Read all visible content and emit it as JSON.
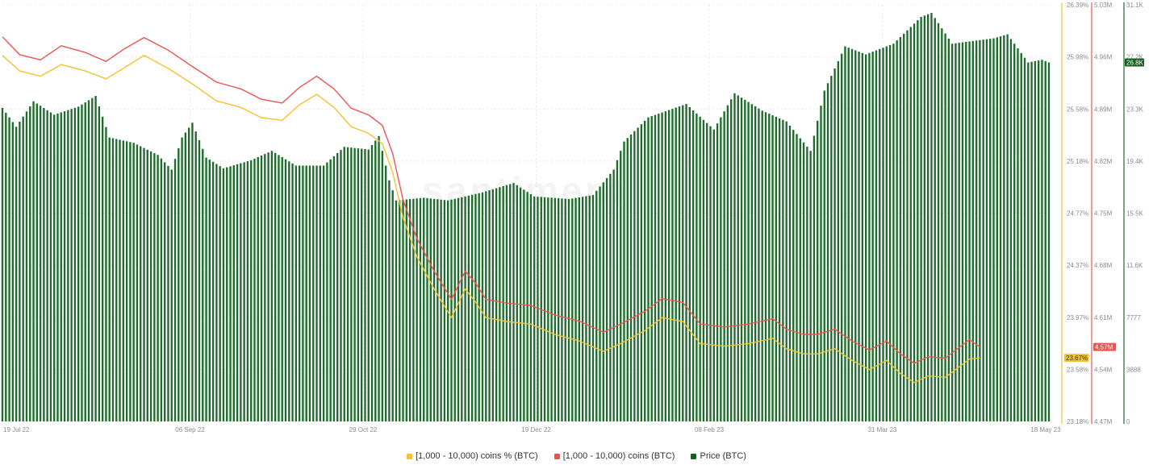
{
  "colors": {
    "pct": "#f2c230",
    "coins": "#ef5350",
    "price": "#1f6b2d",
    "price_badge": "#1b5e20",
    "grid": "#e8e8e8",
    "tick": "#8a8a8a"
  },
  "watermark": "santiment",
  "chart_data": {
    "type": "bar",
    "grid": true,
    "legend_position": "bottom-center",
    "x_ticks": [
      "19 Jul 22",
      "06 Sep 22",
      "29 Oct 22",
      "19 Dec 22",
      "08 Feb 23",
      "31 Mar 23",
      "18 May 23"
    ],
    "x_range": [
      "2022-07-19",
      "2023-05-18"
    ],
    "axes": {
      "pct": {
        "ticks": [
          "26.39%",
          "25.98%",
          "25.58%",
          "25.18%",
          "24.77%",
          "24.37%",
          "23.97%",
          "23.58%",
          "23.18%"
        ],
        "ylim": [
          23.18,
          26.39
        ],
        "last_label": "23.67%"
      },
      "coins": {
        "ticks": [
          "5.03M",
          "4.96M",
          "4.89M",
          "4.82M",
          "4.75M",
          "4.68M",
          "4.61M",
          "4.54M",
          "4.47M"
        ],
        "ylim": [
          4.47,
          5.03
        ],
        "last_label": "4.57M"
      },
      "price": {
        "ticks": [
          "31.1K",
          "27.2K",
          "23.3K",
          "19.4K",
          "15.5K",
          "11.6K",
          "7777",
          "3888",
          "0"
        ],
        "ylim": [
          0,
          31100
        ],
        "last_label": "26.8K"
      }
    },
    "series": [
      {
        "name": "[1,000 - 10,000) coins % (BTC)",
        "axis": "pct",
        "points": [
          [
            "2022-07-19",
            26.0
          ],
          [
            "2022-07-24",
            25.88
          ],
          [
            "2022-07-30",
            25.84
          ],
          [
            "2022-08-05",
            25.93
          ],
          [
            "2022-08-12",
            25.88
          ],
          [
            "2022-08-18",
            25.82
          ],
          [
            "2022-08-23",
            25.9
          ],
          [
            "2022-08-29",
            26.0
          ],
          [
            "2022-09-05",
            25.9
          ],
          [
            "2022-09-12",
            25.78
          ],
          [
            "2022-09-19",
            25.65
          ],
          [
            "2022-09-26",
            25.6
          ],
          [
            "2022-10-02",
            25.52
          ],
          [
            "2022-10-08",
            25.5
          ],
          [
            "2022-10-13",
            25.62
          ],
          [
            "2022-10-18",
            25.7
          ],
          [
            "2022-10-23",
            25.6
          ],
          [
            "2022-10-28",
            25.45
          ],
          [
            "2022-11-02",
            25.4
          ],
          [
            "2022-11-06",
            25.32
          ],
          [
            "2022-11-09",
            25.1
          ],
          [
            "2022-11-12",
            24.75
          ],
          [
            "2022-11-16",
            24.45
          ],
          [
            "2022-11-21",
            24.2
          ],
          [
            "2022-11-26",
            23.98
          ],
          [
            "2022-11-30",
            24.2
          ],
          [
            "2022-12-03",
            24.1
          ],
          [
            "2022-12-06",
            23.98
          ],
          [
            "2022-12-12",
            23.95
          ],
          [
            "2022-12-19",
            23.93
          ],
          [
            "2022-12-26",
            23.85
          ],
          [
            "2023-01-02",
            23.8
          ],
          [
            "2023-01-09",
            23.72
          ],
          [
            "2023-01-14",
            23.78
          ],
          [
            "2023-01-21",
            23.88
          ],
          [
            "2023-01-26",
            23.98
          ],
          [
            "2023-02-01",
            23.95
          ],
          [
            "2023-02-06",
            23.78
          ],
          [
            "2023-02-13",
            23.76
          ],
          [
            "2023-02-20",
            23.78
          ],
          [
            "2023-02-27",
            23.82
          ],
          [
            "2023-03-03",
            23.74
          ],
          [
            "2023-03-08",
            23.7
          ],
          [
            "2023-03-12",
            23.7
          ],
          [
            "2023-03-17",
            23.74
          ],
          [
            "2023-03-22",
            23.65
          ],
          [
            "2023-03-27",
            23.58
          ],
          [
            "2023-04-01",
            23.65
          ],
          [
            "2023-04-05",
            23.55
          ],
          [
            "2023-04-09",
            23.48
          ],
          [
            "2023-04-13",
            23.53
          ],
          [
            "2023-04-18",
            23.52
          ],
          [
            "2023-04-25",
            23.66
          ],
          [
            "2023-04-28",
            23.67
          ]
        ]
      },
      {
        "name": "[1,000 - 10,000) coins (BTC)",
        "axis": "coins",
        "points": [
          [
            "2022-07-19",
            4.987
          ],
          [
            "2022-07-24",
            4.963
          ],
          [
            "2022-07-30",
            4.956
          ],
          [
            "2022-08-05",
            4.975
          ],
          [
            "2022-08-12",
            4.966
          ],
          [
            "2022-08-18",
            4.954
          ],
          [
            "2022-08-23",
            4.97
          ],
          [
            "2022-08-29",
            4.986
          ],
          [
            "2022-09-05",
            4.969
          ],
          [
            "2022-09-12",
            4.947
          ],
          [
            "2022-09-19",
            4.926
          ],
          [
            "2022-09-26",
            4.917
          ],
          [
            "2022-10-02",
            4.903
          ],
          [
            "2022-10-08",
            4.898
          ],
          [
            "2022-10-13",
            4.919
          ],
          [
            "2022-10-18",
            4.934
          ],
          [
            "2022-10-23",
            4.917
          ],
          [
            "2022-10-28",
            4.891
          ],
          [
            "2022-11-02",
            4.882
          ],
          [
            "2022-11-06",
            4.868
          ],
          [
            "2022-11-09",
            4.83
          ],
          [
            "2022-11-12",
            4.768
          ],
          [
            "2022-11-16",
            4.716
          ],
          [
            "2022-11-21",
            4.672
          ],
          [
            "2022-11-26",
            4.634
          ],
          [
            "2022-11-30",
            4.672
          ],
          [
            "2022-12-03",
            4.656
          ],
          [
            "2022-12-06",
            4.634
          ],
          [
            "2022-12-12",
            4.629
          ],
          [
            "2022-12-19",
            4.626
          ],
          [
            "2022-12-26",
            4.613
          ],
          [
            "2023-01-02",
            4.605
          ],
          [
            "2023-01-09",
            4.59
          ],
          [
            "2023-01-14",
            4.601
          ],
          [
            "2023-01-21",
            4.618
          ],
          [
            "2023-01-26",
            4.635
          ],
          [
            "2023-02-01",
            4.63
          ],
          [
            "2023-02-06",
            4.601
          ],
          [
            "2023-02-13",
            4.597
          ],
          [
            "2023-02-20",
            4.601
          ],
          [
            "2023-02-27",
            4.608
          ],
          [
            "2023-03-03",
            4.594
          ],
          [
            "2023-03-08",
            4.587
          ],
          [
            "2023-03-12",
            4.587
          ],
          [
            "2023-03-17",
            4.594
          ],
          [
            "2023-03-22",
            4.578
          ],
          [
            "2023-03-27",
            4.566
          ],
          [
            "2023-04-01",
            4.578
          ],
          [
            "2023-04-05",
            4.561
          ],
          [
            "2023-04-09",
            4.548
          ],
          [
            "2023-04-13",
            4.557
          ],
          [
            "2023-04-18",
            4.555
          ],
          [
            "2023-04-25",
            4.58
          ],
          [
            "2023-04-28",
            4.57
          ]
        ]
      },
      {
        "name": "Price (BTC)",
        "axis": "price",
        "points": [
          [
            "2022-07-19",
            23400
          ],
          [
            "2022-07-23",
            22000
          ],
          [
            "2022-07-28",
            23900
          ],
          [
            "2022-08-03",
            22900
          ],
          [
            "2022-08-10",
            23500
          ],
          [
            "2022-08-15",
            24300
          ],
          [
            "2022-08-19",
            21200
          ],
          [
            "2022-08-26",
            20800
          ],
          [
            "2022-09-02",
            19900
          ],
          [
            "2022-09-06",
            18800
          ],
          [
            "2022-09-09",
            21200
          ],
          [
            "2022-09-12",
            22300
          ],
          [
            "2022-09-16",
            19700
          ],
          [
            "2022-09-21",
            18900
          ],
          [
            "2022-09-29",
            19500
          ],
          [
            "2022-10-05",
            20200
          ],
          [
            "2022-10-12",
            19100
          ],
          [
            "2022-10-20",
            19100
          ],
          [
            "2022-10-26",
            20500
          ],
          [
            "2022-11-02",
            20300
          ],
          [
            "2022-11-05",
            21300
          ],
          [
            "2022-11-08",
            18000
          ],
          [
            "2022-11-10",
            16500
          ],
          [
            "2022-11-18",
            16700
          ],
          [
            "2022-11-25",
            16500
          ],
          [
            "2022-12-05",
            17100
          ],
          [
            "2022-12-14",
            17800
          ],
          [
            "2022-12-20",
            16800
          ],
          [
            "2022-12-30",
            16600
          ],
          [
            "2023-01-06",
            16900
          ],
          [
            "2023-01-12",
            18800
          ],
          [
            "2023-01-15",
            20900
          ],
          [
            "2023-01-22",
            22700
          ],
          [
            "2023-02-02",
            23700
          ],
          [
            "2023-02-10",
            21800
          ],
          [
            "2023-02-16",
            24500
          ],
          [
            "2023-02-24",
            23200
          ],
          [
            "2023-03-03",
            22400
          ],
          [
            "2023-03-10",
            20200
          ],
          [
            "2023-03-14",
            24700
          ],
          [
            "2023-03-20",
            28000
          ],
          [
            "2023-03-26",
            27400
          ],
          [
            "2023-04-03",
            28200
          ],
          [
            "2023-04-11",
            30200
          ],
          [
            "2023-04-14",
            30500
          ],
          [
            "2023-04-20",
            28200
          ],
          [
            "2023-04-26",
            28400
          ],
          [
            "2023-05-02",
            28600
          ],
          [
            "2023-05-06",
            28900
          ],
          [
            "2023-05-12",
            26800
          ],
          [
            "2023-05-16",
            27000
          ],
          [
            "2023-05-18",
            26800
          ]
        ]
      }
    ]
  },
  "legend": {
    "pct": "[1,000 - 10,000) coins % (BTC)",
    "coins": "[1,000 - 10,000) coins (BTC)",
    "price": "Price (BTC)"
  }
}
